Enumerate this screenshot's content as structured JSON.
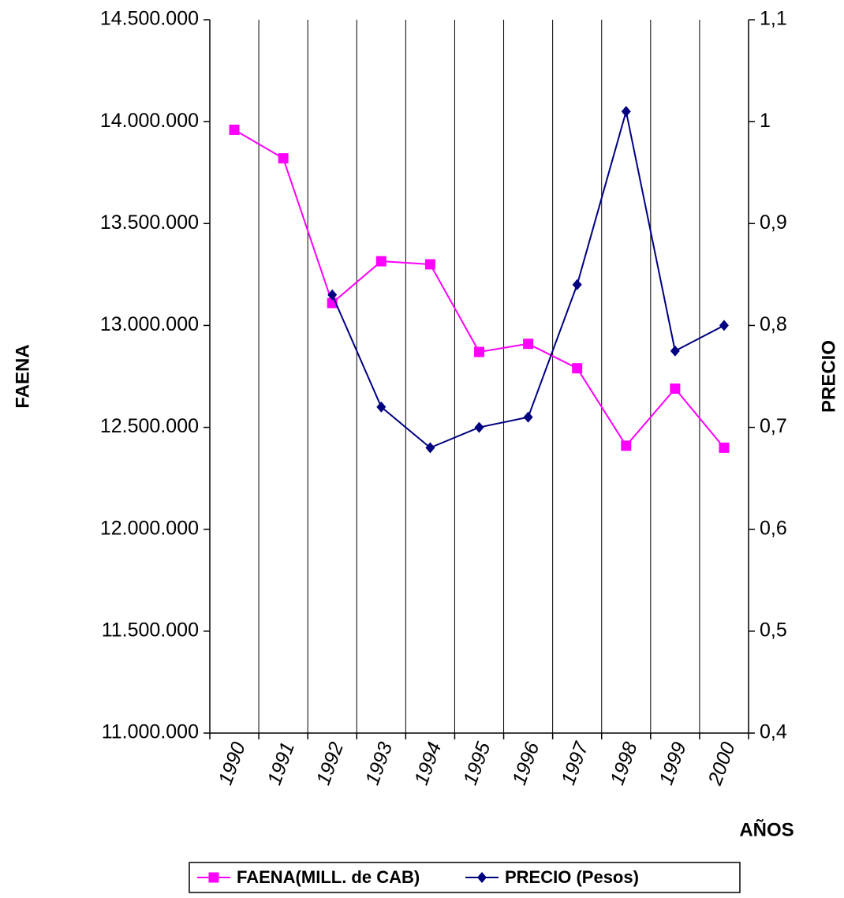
{
  "chart_data": {
    "type": "line",
    "categories": [
      "1990",
      "1991",
      "1992",
      "1993",
      "1994",
      "1995",
      "1996",
      "1997",
      "1998",
      "1999",
      "2000"
    ],
    "x_label": "AÑOS",
    "y_label": "FAENA",
    "y2_label": "PRECIO",
    "ylim": [
      11000000,
      14500000
    ],
    "yticks": [
      {
        "value": 11000000,
        "label": "11.000.000"
      },
      {
        "value": 11500000,
        "label": "11.500.000"
      },
      {
        "value": 12000000,
        "label": "12.000.000"
      },
      {
        "value": 12500000,
        "label": "12.500.000"
      },
      {
        "value": 13000000,
        "label": "13.000.000"
      },
      {
        "value": 13500000,
        "label": "13.500.000"
      },
      {
        "value": 14000000,
        "label": "14.000.000"
      },
      {
        "value": 14500000,
        "label": "14.500.000"
      }
    ],
    "y2lim": [
      0.4,
      1.1
    ],
    "y2ticks": [
      {
        "value": 0.4,
        "label": "0,4"
      },
      {
        "value": 0.5,
        "label": "0,5"
      },
      {
        "value": 0.6,
        "label": "0,6"
      },
      {
        "value": 0.7,
        "label": "0,7"
      },
      {
        "value": 0.8,
        "label": "0,8"
      },
      {
        "value": 0.9,
        "label": "0,9"
      },
      1,
      {
        "value": 1.1,
        "label": "1,1"
      }
    ],
    "grid": "x",
    "legend": "bottom",
    "series": [
      {
        "name": "FAENA(MILL. de CAB)",
        "color": "#ff00ff",
        "marker": "square",
        "values": [
          13960000,
          13820000,
          13110000,
          13315000,
          13300000,
          12870000,
          12910000,
          12790000,
          12410000,
          12690000,
          12400000
        ]
      },
      {
        "name": "PRECIO (Pesos)",
        "color": "#000080",
        "marker": "diamond",
        "axis": "y2",
        "values": [
          null,
          null,
          0.83,
          0.72,
          0.68,
          0.7,
          0.71,
          0.84,
          1.01,
          0.775,
          0.8
        ]
      }
    ]
  }
}
